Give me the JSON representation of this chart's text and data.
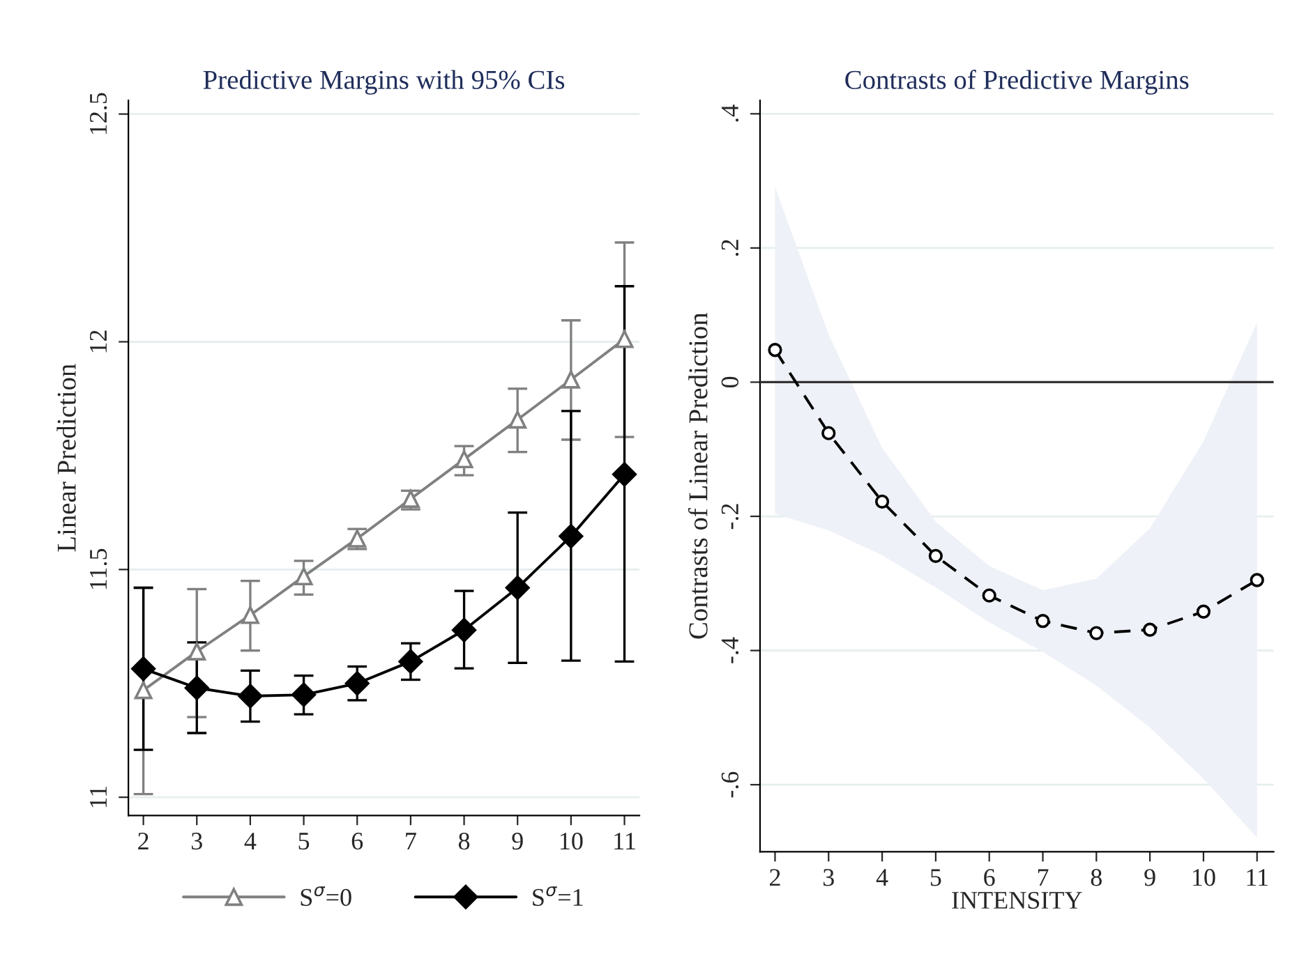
{
  "chart_data": [
    {
      "type": "line",
      "title": "Predictive Margins with 95% CIs",
      "ylabel": "Linear Prediction",
      "x": [
        2,
        3,
        4,
        5,
        6,
        7,
        8,
        9,
        10,
        11
      ],
      "series": [
        {
          "name": "S$^{σ}$=0",
          "color": "#808080",
          "marker": "triangle",
          "values": [
            11.235,
            11.32,
            11.4,
            11.485,
            11.568,
            11.655,
            11.742,
            11.829,
            11.917,
            12.006
          ],
          "errors": [
            [
              11.007,
              11.46
            ],
            [
              11.176,
              11.457
            ],
            [
              11.322,
              11.475
            ],
            [
              11.445,
              11.519
            ],
            [
              11.545,
              11.589
            ],
            [
              11.632,
              11.673
            ],
            [
              11.707,
              11.771
            ],
            [
              11.758,
              11.897
            ],
            [
              11.785,
              12.047
            ],
            [
              11.791,
              12.218
            ]
          ]
        },
        {
          "name": "S$^{σ}$=1",
          "color": "#000000",
          "marker": "diamond",
          "values": [
            11.282,
            11.24,
            11.222,
            11.225,
            11.25,
            11.298,
            11.367,
            11.46,
            11.573,
            11.709
          ],
          "errors": [
            [
              11.104,
              11.46
            ],
            [
              11.141,
              11.34
            ],
            [
              11.166,
              11.278
            ],
            [
              11.182,
              11.267
            ],
            [
              11.213,
              11.287
            ],
            [
              11.258,
              11.338
            ],
            [
              11.283,
              11.453
            ],
            [
              11.295,
              11.625
            ],
            [
              11.3,
              11.848
            ],
            [
              11.298,
              12.122
            ]
          ]
        }
      ],
      "xlim": [
        1.72,
        11.28
      ],
      "xticks": [
        2,
        3,
        4,
        5,
        6,
        7,
        8,
        9,
        10,
        11
      ],
      "ylim": [
        10.96,
        12.53
      ],
      "yticks": [
        11,
        11.5,
        12,
        12.5
      ],
      "grid": "y",
      "legend": "bottom",
      "line_style": "solid"
    },
    {
      "type": "line",
      "title": "Contrasts of Predictive Margins",
      "xlabel": "INTENSITY",
      "ylabel": "Contrasts of Linear Prediction",
      "x": [
        2,
        3,
        4,
        5,
        6,
        7,
        8,
        9,
        10,
        11
      ],
      "series": [
        {
          "color": "#000000",
          "marker": "circle",
          "line_style": "dashed",
          "values": [
            0.048,
            -0.076,
            -0.178,
            -0.259,
            -0.318,
            -0.356,
            -0.374,
            -0.369,
            -0.342,
            -0.295
          ],
          "upper": [
            0.291,
            0.071,
            -0.098,
            -0.208,
            -0.274,
            -0.31,
            -0.293,
            -0.218,
            -0.088,
            0.089
          ],
          "lower": [
            -0.196,
            -0.221,
            -0.258,
            -0.306,
            -0.358,
            -0.402,
            -0.452,
            -0.515,
            -0.591,
            -0.679
          ]
        }
      ],
      "xlim": [
        1.72,
        11.31
      ],
      "xticks": [
        2,
        3,
        4,
        5,
        6,
        7,
        8,
        9,
        10,
        11
      ],
      "ylim": [
        -0.7,
        0.42
      ],
      "yticks": [
        {
          "value": -0.6,
          "label": "-.6"
        },
        {
          "value": -0.4,
          "label": "-.4"
        },
        {
          "value": -0.2,
          "label": "-.2"
        },
        {
          "value": 0,
          "label": "0"
        },
        {
          "value": 0.2,
          "label": ".2"
        },
        {
          "value": 0.4,
          "label": ".4"
        }
      ],
      "ref_lines": [
        {
          "axis": "y",
          "value": 0,
          "color": "#333333"
        }
      ],
      "grid": "y",
      "legend": false
    }
  ]
}
